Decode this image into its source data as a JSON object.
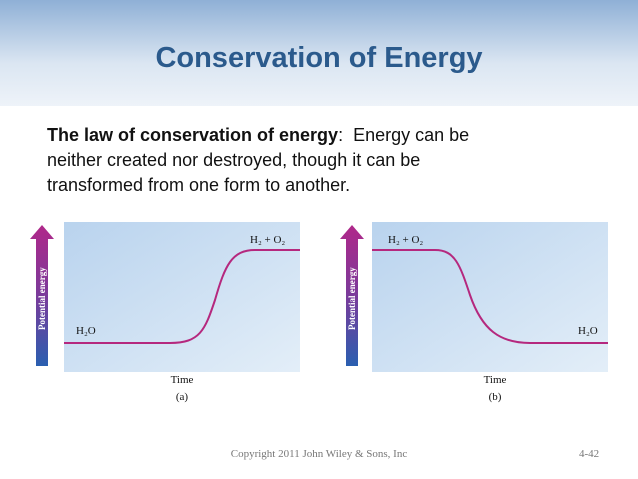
{
  "title": "Conservation of Energy",
  "body": {
    "term": "The law of conservation of energy",
    "lines": [
      ":  Energy can be",
      "neither created nor destroyed, though it can be",
      "transformed from one form to another."
    ]
  },
  "panels": [
    {
      "y_label": "Potential energy",
      "high_label": "H₂ + O₂",
      "low_label": "H₂O",
      "x_label": "Time",
      "caption": "(a)"
    },
    {
      "y_label": "Potential energy",
      "high_label": "H₂ + O₂",
      "low_label": "H₂O",
      "x_label": "Time",
      "caption": "(b)"
    }
  ],
  "footer": {
    "copyright": "Copyright 2011 John Wiley & Sons, Inc",
    "page": "4-42"
  }
}
